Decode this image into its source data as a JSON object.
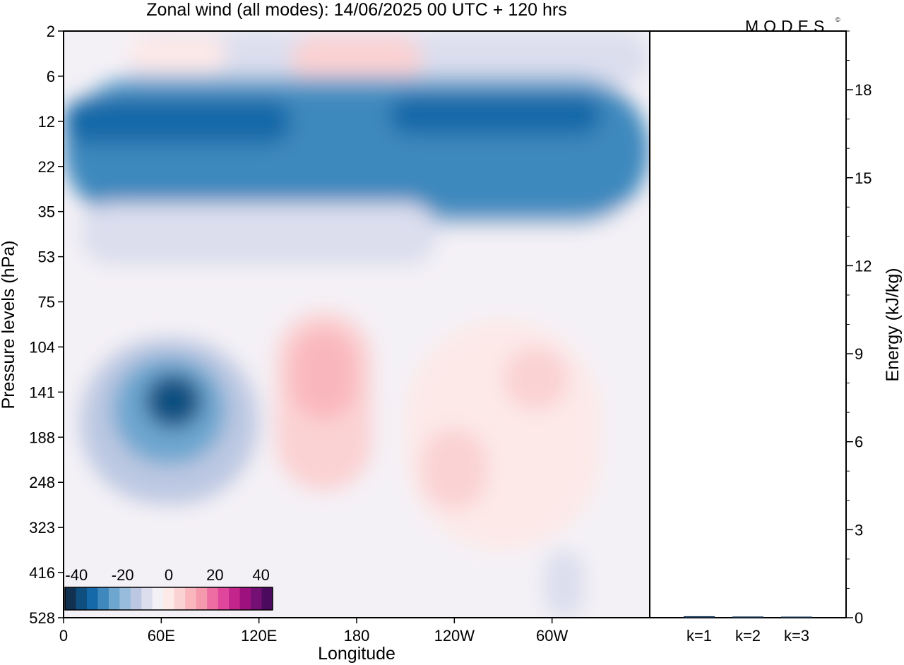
{
  "title": "Zonal wind (all modes):  14/06/2025  00 UTC  + 120 hrs",
  "logo": "MODES",
  "logo_mark": "©",
  "chart_data": [
    {
      "type": "heatmap",
      "xlabel": "Longitude",
      "ylabel": "Pressure levels (hPa)",
      "x_ticks": [
        "0",
        "60E",
        "120E",
        "180",
        "120W",
        "60W"
      ],
      "x_tick_values": [
        0,
        60,
        120,
        180,
        240,
        300
      ],
      "xlim": [
        0,
        360
      ],
      "y_ticks": [
        "2",
        "6",
        "12",
        "22",
        "35",
        "53",
        "75",
        "104",
        "141",
        "188",
        "248",
        "323",
        "416",
        "528"
      ],
      "colorbar": {
        "labels": [
          "-40",
          "-20",
          "0",
          "20",
          "40"
        ],
        "label_values": [
          -40,
          -20,
          0,
          20,
          40
        ],
        "range": [
          -45,
          45
        ],
        "step": 5,
        "colors": [
          "#12304f",
          "#0f4f80",
          "#1669a8",
          "#3e88bd",
          "#6da6cf",
          "#98bcdb",
          "#bcc8e2",
          "#dcdeee",
          "#f4f1f6",
          "#fde9e8",
          "#fbd2d3",
          "#f9b7bd",
          "#f49aac",
          "#ee6ea3",
          "#e0469b",
          "#c4258c",
          "#9c117d",
          "#741073",
          "#4c0a5e"
        ]
      },
      "regions": [
        {
          "x": [
            0,
            360
          ],
          "y": [
            0,
            13
          ],
          "value": -3
        },
        {
          "x": [
            40,
            360
          ],
          "y": [
            0,
            1.2
          ],
          "value": -8
        },
        {
          "x": [
            40,
            100
          ],
          "y": [
            0.1,
            0.9
          ],
          "value": 4
        },
        {
          "x": [
            140,
            220
          ],
          "y": [
            0.1,
            1.2
          ],
          "value": 8
        },
        {
          "x": [
            0,
            360
          ],
          "y": [
            1,
            4.3
          ],
          "value": -22
        },
        {
          "x": [
            0,
            360
          ],
          "y": [
            1.3,
            4
          ],
          "value": -26
        },
        {
          "x": [
            0,
            140
          ],
          "y": [
            1.5,
            2.5
          ],
          "value": -31
        },
        {
          "x": [
            200,
            330
          ],
          "y": [
            1.4,
            2.3
          ],
          "value": -32
        },
        {
          "x": [
            10,
            230
          ],
          "y": [
            3.8,
            5.2
          ],
          "value": -10
        },
        {
          "x": [
            10,
            120
          ],
          "y": [
            6.8,
            10.5
          ],
          "value": -14
        },
        {
          "x": [
            30,
            100
          ],
          "y": [
            7.2,
            9.6
          ],
          "value": -24
        },
        {
          "x": [
            50,
            85
          ],
          "y": [
            7.6,
            8.8
          ],
          "value": -36
        },
        {
          "x": [
            130,
            190
          ],
          "y": [
            6.2,
            10.2
          ],
          "value": 5
        },
        {
          "x": [
            140,
            180
          ],
          "y": [
            6.6,
            8.6
          ],
          "value": 10
        },
        {
          "x": [
            210,
            330
          ],
          "y": [
            6.4,
            11.5
          ],
          "value": 4
        },
        {
          "x": [
            220,
            260
          ],
          "y": [
            8.8,
            10.6
          ],
          "value": 9
        },
        {
          "x": [
            270,
            310
          ],
          "y": [
            7,
            8.4
          ],
          "value": 9
        },
        {
          "x": [
            160,
            200
          ],
          "y": [
            10.5,
            13
          ],
          "value": -4
        },
        {
          "x": [
            295,
            320
          ],
          "y": [
            11.5,
            13
          ],
          "value": -8
        }
      ]
    },
    {
      "type": "bar",
      "ylabel": "Energy (kJ/kg)",
      "categories": [
        "k=1",
        "k=2",
        "k=3"
      ],
      "values": [
        0.05,
        0.04,
        0.03
      ],
      "ylim": [
        0,
        20
      ],
      "y_ticks": [
        "0",
        "3",
        "6",
        "9",
        "12",
        "15",
        "18"
      ],
      "y_tick_values": [
        0,
        3,
        6,
        9,
        12,
        15,
        18
      ]
    }
  ]
}
